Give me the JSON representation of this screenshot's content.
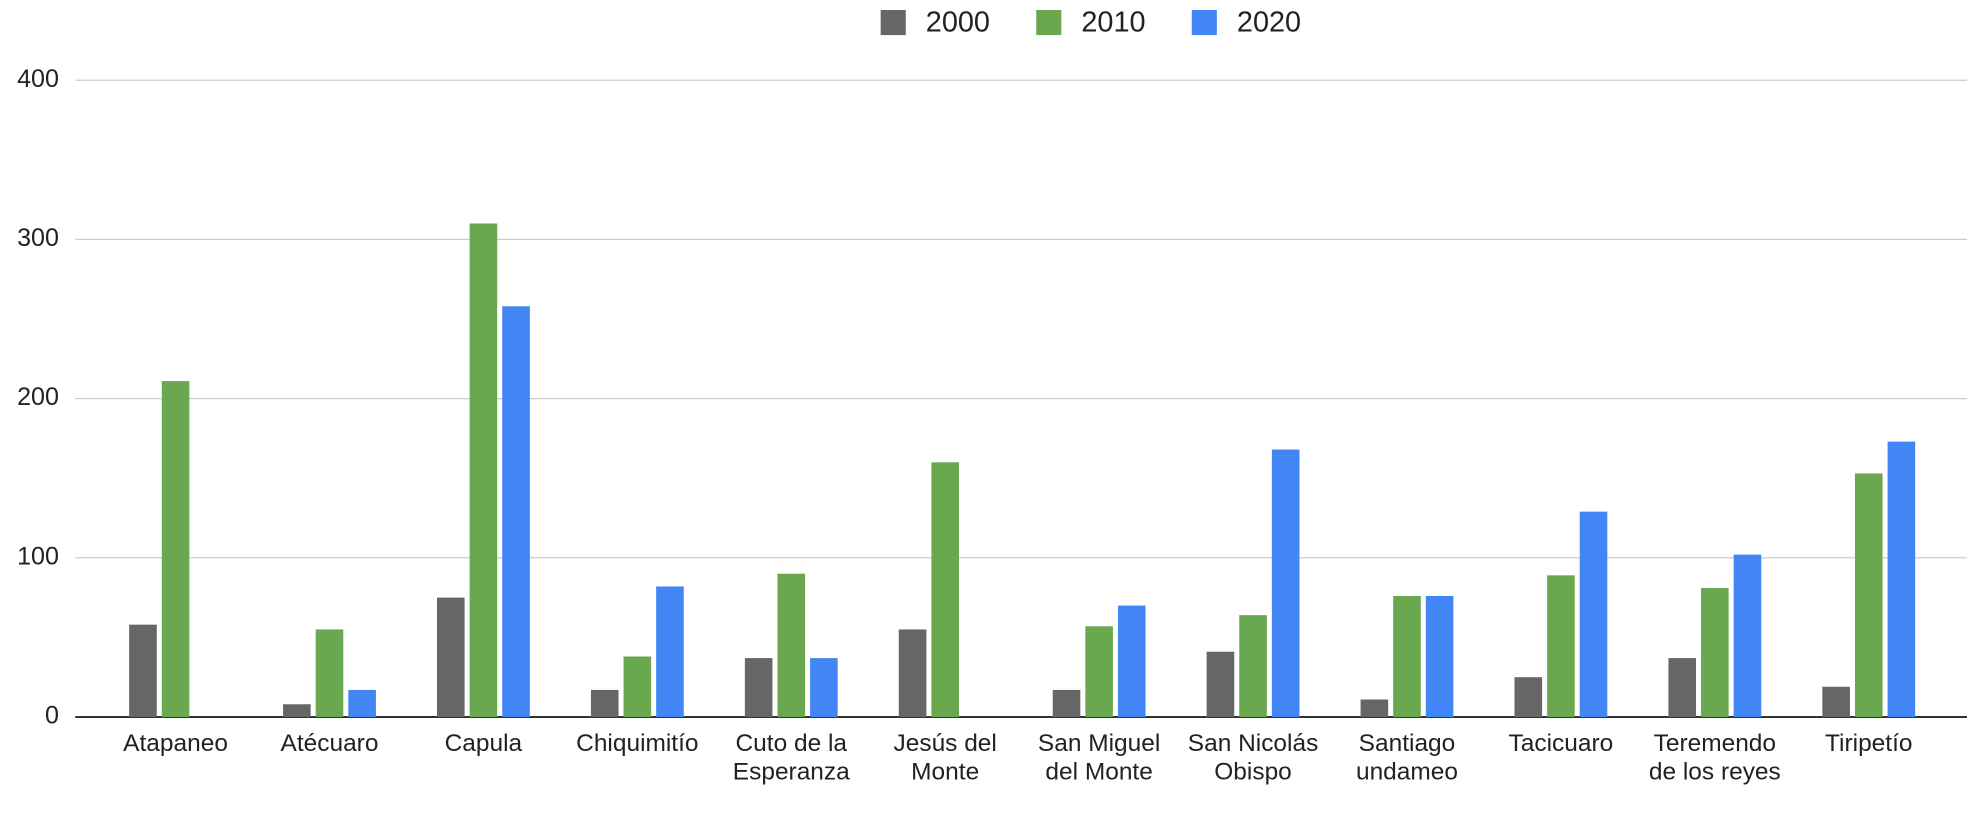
{
  "chart_data": {
    "type": "bar",
    "categories": [
      "Atapaneo",
      "Atécuaro",
      "Capula",
      "Chiquimitío",
      "Cuto de la Esperanza",
      "Jesús del Monte",
      "San Miguel del Monte",
      "San Nicolás Obispo",
      "Santiago undameo",
      "Tacicuaro",
      "Teremendo de los reyes",
      "Tiripetío"
    ],
    "series": [
      {
        "name": "2000",
        "color": "#666666",
        "values": [
          58,
          8,
          75,
          17,
          37,
          55,
          17,
          41,
          11,
          25,
          37,
          19
        ]
      },
      {
        "name": "2010",
        "color": "#6aa84f",
        "values": [
          211,
          55,
          310,
          38,
          90,
          160,
          57,
          64,
          76,
          89,
          81,
          153
        ]
      },
      {
        "name": "2020",
        "color": "#4285f4",
        "values": [
          null,
          17,
          258,
          82,
          37,
          null,
          70,
          168,
          76,
          129,
          102,
          173
        ]
      }
    ],
    "ylim": [
      0,
      400
    ],
    "yticks": [
      0,
      100,
      200,
      300,
      400
    ],
    "grid": true,
    "legend": "top"
  }
}
